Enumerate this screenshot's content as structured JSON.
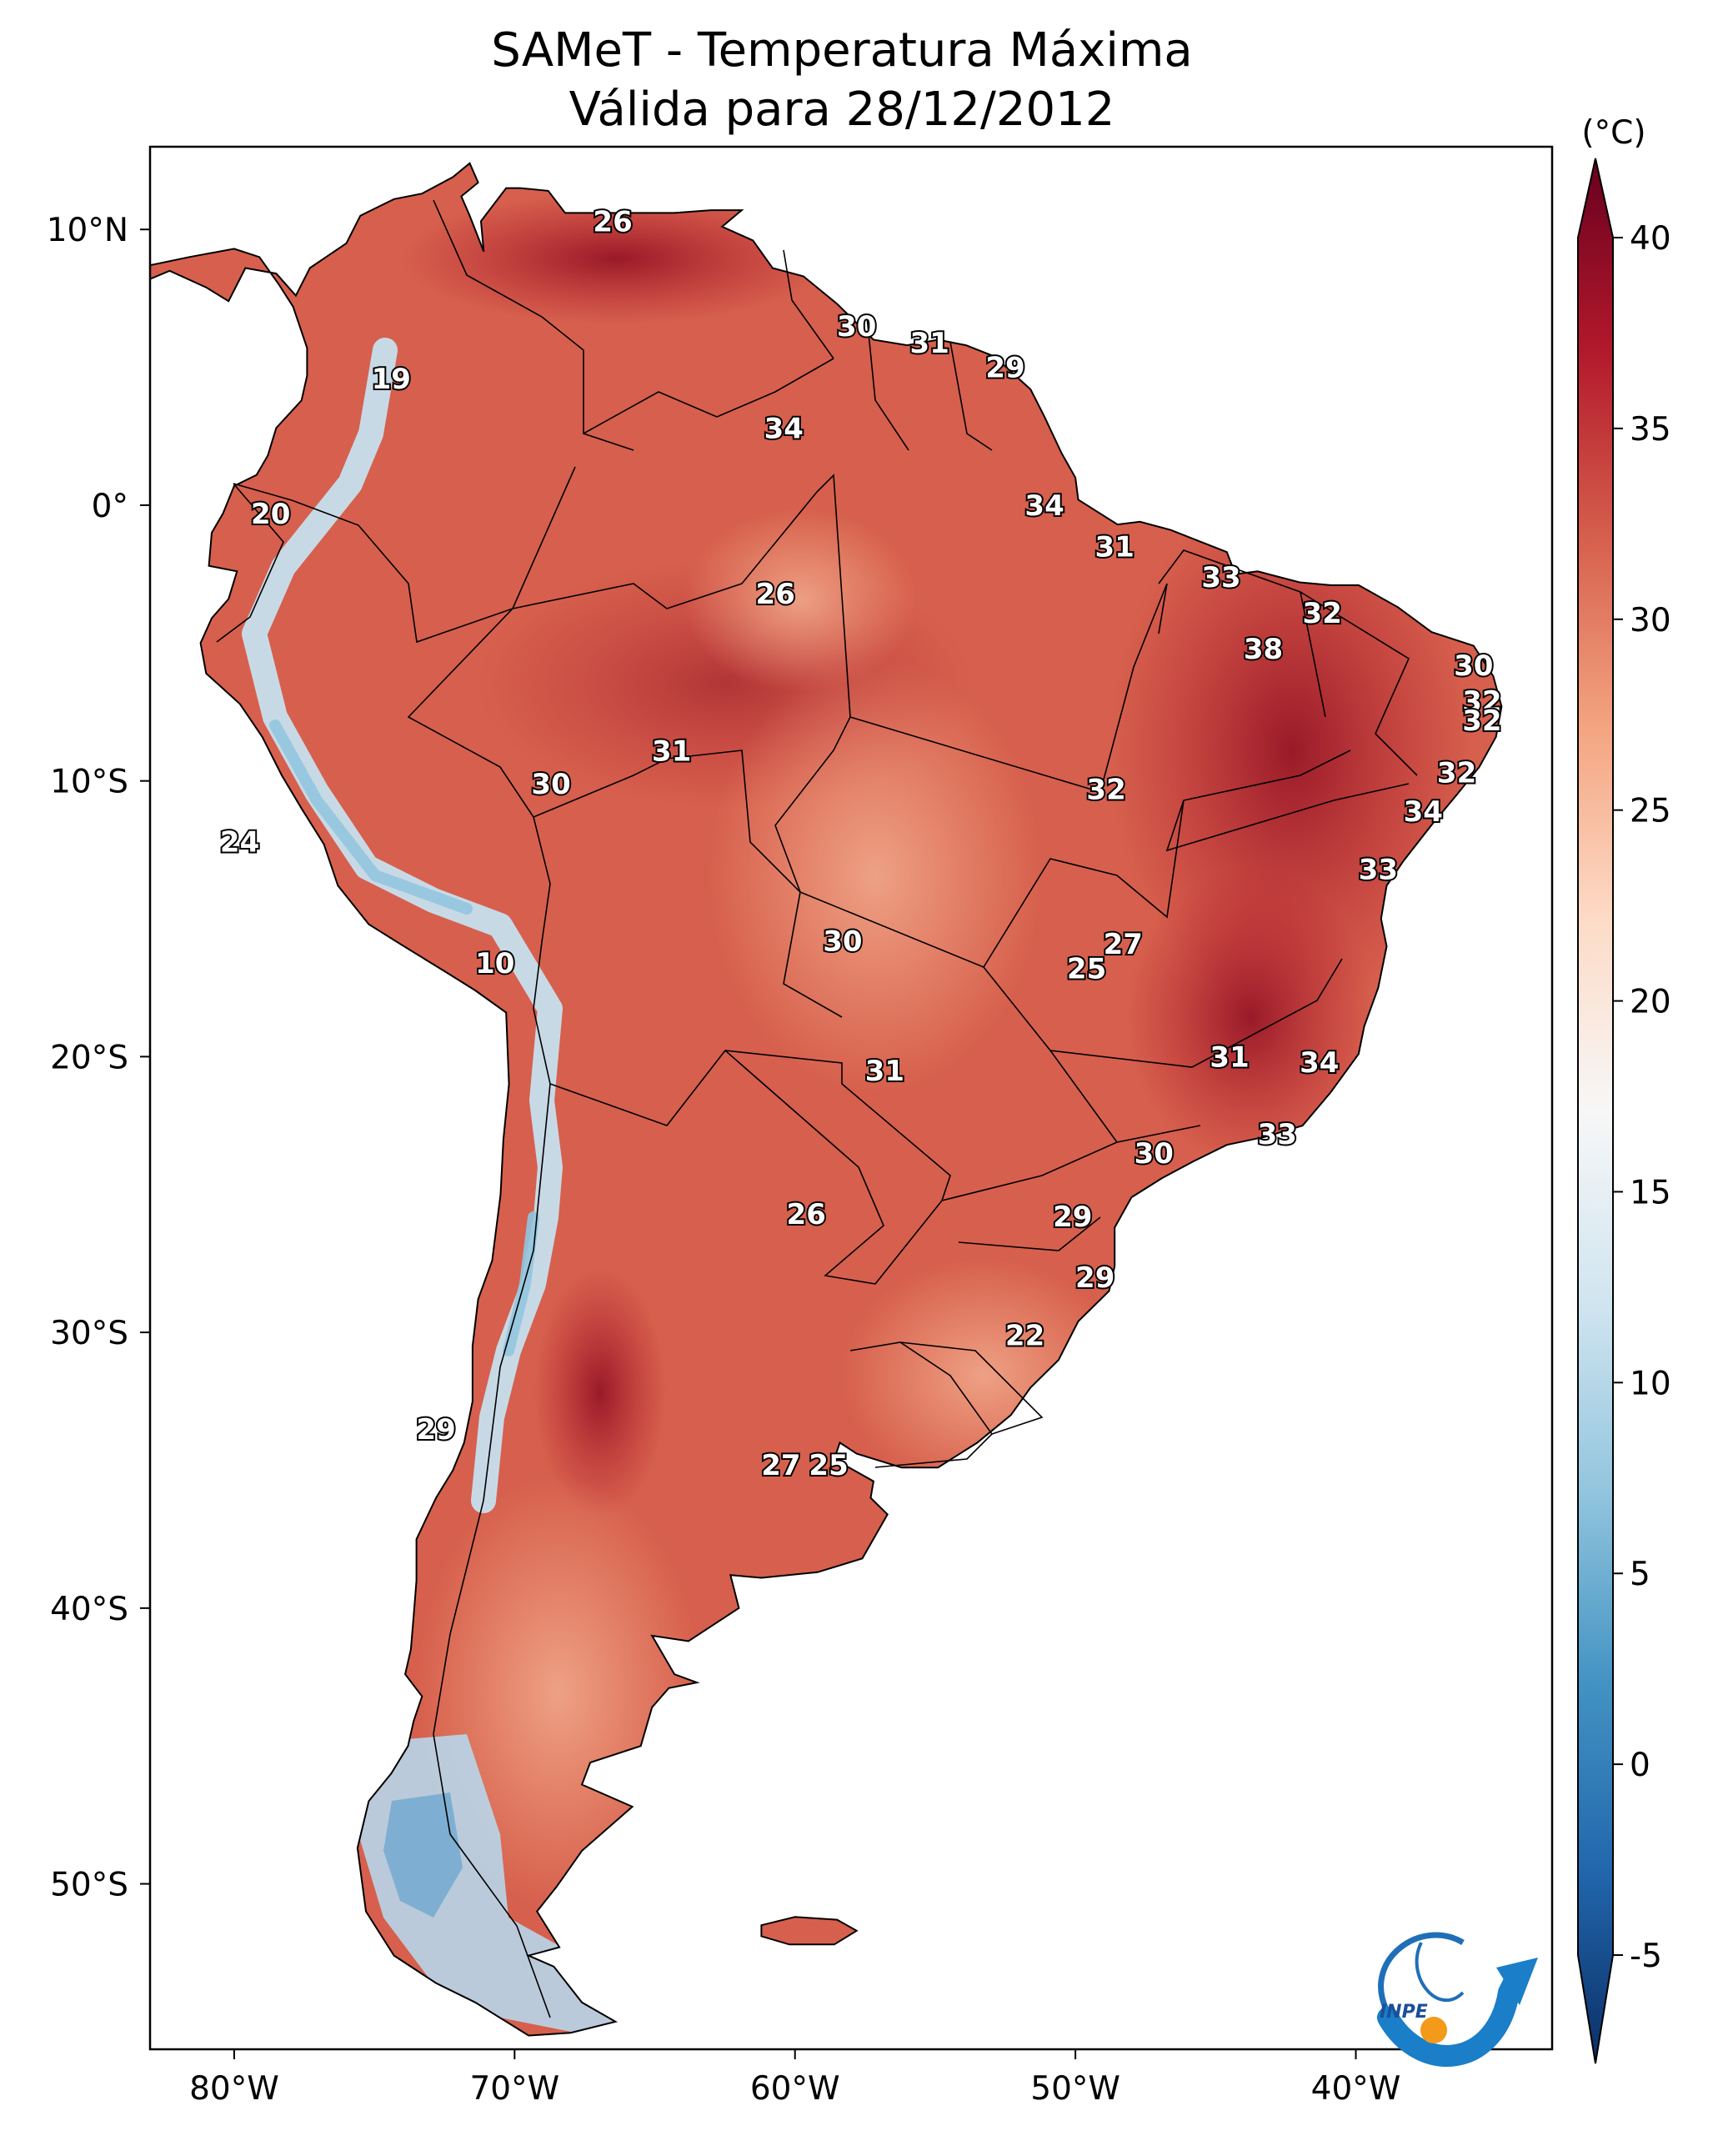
{
  "title": {
    "line1": "SAMeT - Temperatura Máxima",
    "line2": "Válida para 28/12/2012"
  },
  "colorbar": {
    "unit": "(°C)",
    "ticks": [
      40,
      35,
      30,
      25,
      20,
      15,
      10,
      5,
      0,
      -5
    ],
    "tick_labels": [
      "40",
      "35",
      "30",
      "25",
      "20",
      "15",
      "10",
      "5",
      "0",
      "-5"
    ],
    "range": [
      -5,
      40
    ],
    "extend": "both",
    "colormap": "RdBu_r",
    "colors": [
      "#0b2f66",
      "#2166ac",
      "#4393c3",
      "#92c5de",
      "#d1e5f0",
      "#f7f7f7",
      "#fddbc7",
      "#f4a582",
      "#d6604d",
      "#b2182b",
      "#67001f"
    ]
  },
  "axes": {
    "lon_labels": [
      "80°W",
      "70°W",
      "60°W",
      "50°W",
      "40°W"
    ],
    "lon_values": [
      -80,
      -70,
      -60,
      -50,
      -40
    ],
    "lat_labels": [
      "10°N",
      "0°",
      "10°S",
      "20°S",
      "30°S",
      "40°S",
      "50°S"
    ],
    "lat_values": [
      10,
      0,
      -10,
      -20,
      -30,
      -40,
      -50
    ],
    "lon_range": [
      -83,
      -33
    ],
    "lat_range": [
      -56,
      13
    ]
  },
  "map": {
    "region": "South America",
    "ocean_color": "#ffffff",
    "land_base_color": "#d6604d"
  },
  "contour_labels": [
    {
      "text": "26",
      "lon": -66.5,
      "lat": 10.3
    },
    {
      "text": "30",
      "lon": -57.8,
      "lat": 6.5
    },
    {
      "text": "31",
      "lon": -55.2,
      "lat": 5.9
    },
    {
      "text": "29",
      "lon": -52.5,
      "lat": 5.0
    },
    {
      "text": "19",
      "lon": -74.4,
      "lat": 4.6
    },
    {
      "text": "34",
      "lon": -60.4,
      "lat": 2.8
    },
    {
      "text": "34",
      "lon": -51.1,
      "lat": 0.0
    },
    {
      "text": "20",
      "lon": -78.7,
      "lat": -0.3
    },
    {
      "text": "31",
      "lon": -48.6,
      "lat": -1.5
    },
    {
      "text": "33",
      "lon": -44.8,
      "lat": -2.6
    },
    {
      "text": "26",
      "lon": -60.7,
      "lat": -3.2
    },
    {
      "text": "32",
      "lon": -41.2,
      "lat": -3.9
    },
    {
      "text": "38",
      "lon": -43.3,
      "lat": -5.2
    },
    {
      "text": "30",
      "lon": -35.8,
      "lat": -5.8
    },
    {
      "text": "32",
      "lon": -35.5,
      "lat": -7.1
    },
    {
      "text": "32",
      "lon": -35.5,
      "lat": -7.8
    },
    {
      "text": "31",
      "lon": -64.4,
      "lat": -8.9
    },
    {
      "text": "30",
      "lon": -68.7,
      "lat": -10.1
    },
    {
      "text": "32",
      "lon": -48.9,
      "lat": -10.3
    },
    {
      "text": "32",
      "lon": -36.4,
      "lat": -9.7
    },
    {
      "text": "24",
      "lon": -79.8,
      "lat": -12.2
    },
    {
      "text": "34",
      "lon": -37.6,
      "lat": -11.1
    },
    {
      "text": "33",
      "lon": -39.2,
      "lat": -13.2
    },
    {
      "text": "30",
      "lon": -58.3,
      "lat": -15.8
    },
    {
      "text": "27",
      "lon": -48.3,
      "lat": -15.9
    },
    {
      "text": "25",
      "lon": -49.6,
      "lat": -16.8
    },
    {
      "text": "10",
      "lon": -70.7,
      "lat": -16.6
    },
    {
      "text": "31",
      "lon": -44.5,
      "lat": -20.0
    },
    {
      "text": "34",
      "lon": -41.3,
      "lat": -20.2
    },
    {
      "text": "31",
      "lon": -56.8,
      "lat": -20.5
    },
    {
      "text": "33",
      "lon": -42.8,
      "lat": -22.8
    },
    {
      "text": "30",
      "lon": -47.2,
      "lat": -23.5
    },
    {
      "text": "26",
      "lon": -59.6,
      "lat": -25.7
    },
    {
      "text": "29",
      "lon": -50.1,
      "lat": -25.8
    },
    {
      "text": "29",
      "lon": -49.3,
      "lat": -28.0
    },
    {
      "text": "22",
      "lon": -51.8,
      "lat": -30.1
    },
    {
      "text": "29",
      "lon": -72.8,
      "lat": -33.5
    },
    {
      "text": "27",
      "lon": -60.5,
      "lat": -34.8
    },
    {
      "text": "25",
      "lon": -58.8,
      "lat": -34.8
    }
  ],
  "logo": {
    "name": "inpe-logo",
    "text": "INPE"
  }
}
